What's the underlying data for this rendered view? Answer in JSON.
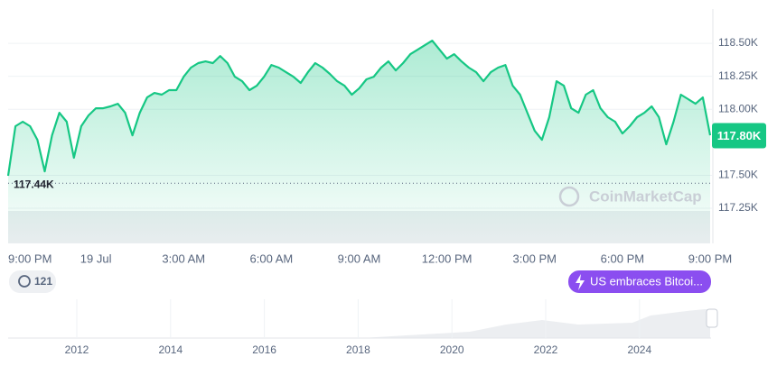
{
  "chart_data": {
    "type": "line",
    "categories": [
      "9:00 PM",
      null,
      null,
      null,
      null,
      null,
      null,
      null,
      null,
      null,
      null,
      null,
      "19 Jul",
      null,
      null,
      null,
      null,
      null,
      null,
      null,
      null,
      null,
      null,
      null,
      "3:00 AM",
      null,
      null,
      null,
      null,
      null,
      null,
      null,
      null,
      null,
      null,
      null,
      "6:00 AM",
      null,
      null,
      null,
      null,
      null,
      null,
      null,
      null,
      null,
      null,
      null,
      "9:00 AM",
      null,
      null,
      null,
      null,
      null,
      null,
      null,
      null,
      null,
      null,
      null,
      "12:00 PM",
      null,
      null,
      null,
      null,
      null,
      null,
      null,
      null,
      null,
      null,
      null,
      "3:00 PM",
      null,
      null,
      null,
      null,
      null,
      null,
      null,
      null,
      null,
      null,
      null,
      "6:00 PM",
      null,
      null,
      null,
      null,
      null,
      null,
      null,
      null,
      null,
      null,
      null,
      "9:00 PM"
    ],
    "values": [
      117496,
      117872,
      117906,
      117872,
      117769,
      117530,
      117803,
      117974,
      117906,
      117633,
      117872,
      117954,
      118008,
      118008,
      118022,
      118042,
      117974,
      117803,
      117974,
      118090,
      118124,
      118111,
      118145,
      118145,
      118247,
      118316,
      118350,
      118363,
      118350,
      118404,
      118350,
      118247,
      118213,
      118145,
      118179,
      118247,
      118336,
      118316,
      118281,
      118247,
      118200,
      118281,
      118350,
      118316,
      118268,
      118213,
      118179,
      118111,
      118158,
      118227,
      118247,
      118316,
      118363,
      118295,
      118350,
      118418,
      118452,
      118486,
      118520,
      118452,
      118384,
      118418,
      118363,
      118316,
      118281,
      118213,
      118281,
      118316,
      118336,
      118179,
      118111,
      117974,
      117837,
      117769,
      117940,
      118213,
      118179,
      118008,
      117974,
      118111,
      118145,
      118008,
      117940,
      117906,
      117817,
      117872,
      117940,
      117974,
      118022,
      117940,
      117735,
      117906,
      118111,
      118077,
      118042,
      118090,
      117803
    ],
    "color": "#16c784",
    "ylim": [
      116984,
      118760
    ],
    "yticks": [
      {
        "value": 118500,
        "label": "118.50K"
      },
      {
        "value": 118250,
        "label": "118.25K"
      },
      {
        "value": 118000,
        "label": "118.00K"
      },
      {
        "value": 117500,
        "label": "117.50K"
      },
      {
        "value": 117250,
        "label": "117.25K"
      }
    ],
    "grid": true,
    "current": {
      "value": 117800,
      "label": "117.80K"
    },
    "reference": {
      "value": 117440,
      "label": "117.44K"
    },
    "watermark": "CoinMarketCap",
    "notes_count": "121",
    "event": "US embraces Bitcoi...",
    "navigator_labels": [
      "2012",
      "2014",
      "2016",
      "2018",
      "2020",
      "2022",
      "2024"
    ]
  }
}
